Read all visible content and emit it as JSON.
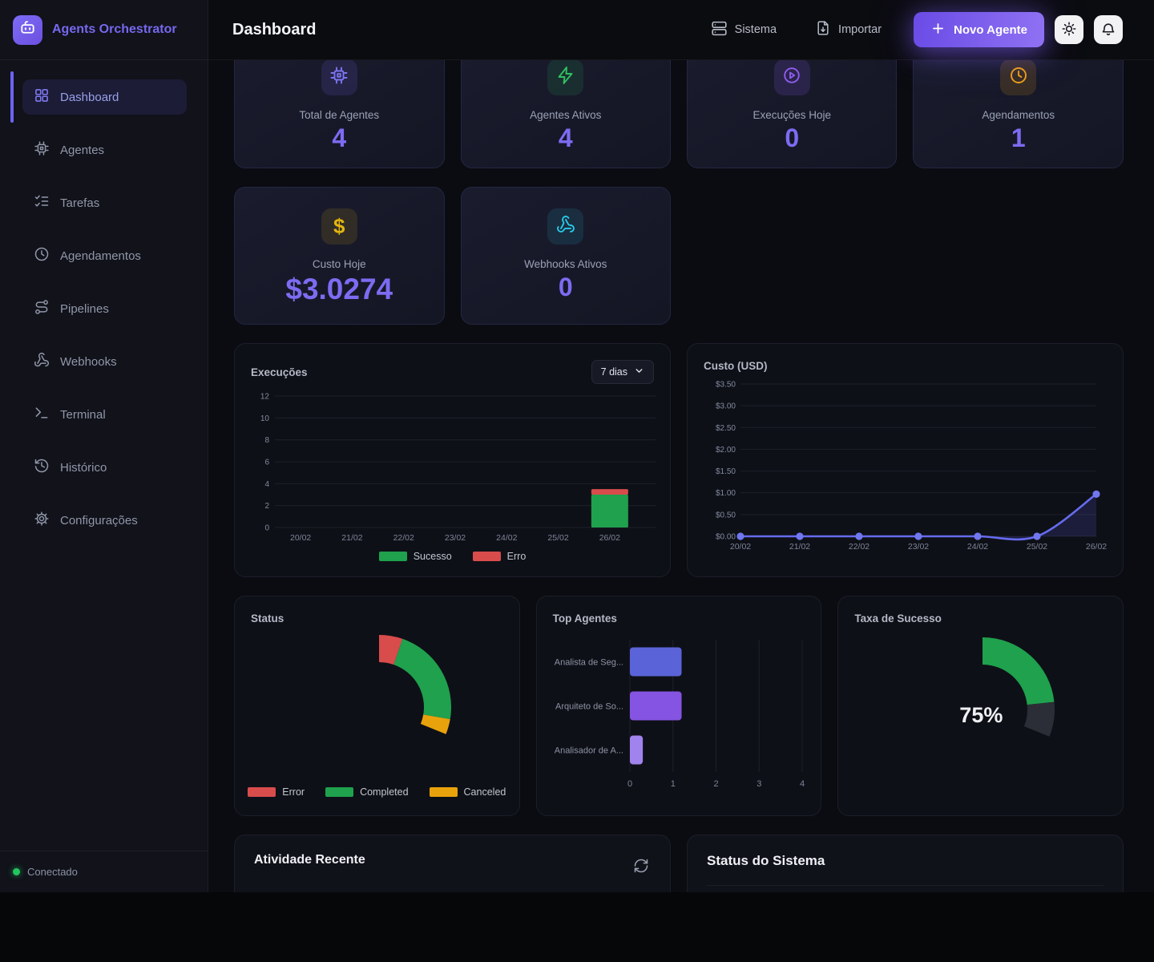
{
  "app": {
    "brand": "Agents Orchestrator",
    "connection_status": "Conectado"
  },
  "sidebar": {
    "items": [
      {
        "label": "Dashboard",
        "active": true
      },
      {
        "label": "Agentes"
      },
      {
        "label": "Tarefas"
      },
      {
        "label": "Agendamentos"
      },
      {
        "label": "Pipelines"
      },
      {
        "label": "Webhooks"
      },
      {
        "label": "Terminal"
      },
      {
        "label": "Histórico"
      },
      {
        "label": "Configurações"
      }
    ]
  },
  "header": {
    "title": "Dashboard",
    "sistema_label": "Sistema",
    "importar_label": "Importar",
    "novo_agente_label": "Novo Agente"
  },
  "stats": [
    {
      "label": "Total de Agentes",
      "value": "4",
      "icon": "cpu-icon",
      "accent": "#7d75f2",
      "tile_bg": "rgba(124,108,245,0.14)"
    },
    {
      "label": "Agentes Ativos",
      "value": "4",
      "icon": "zap-icon",
      "accent": "#2fc060",
      "tile_bg": "rgba(47,192,96,0.13)"
    },
    {
      "label": "Execuções Hoje",
      "value": "0",
      "icon": "play-circle-icon",
      "accent": "#8e5cf0",
      "tile_bg": "rgba(142,92,240,0.16)"
    },
    {
      "label": "Agendamentos",
      "value": "1",
      "icon": "clock-icon",
      "accent": "#f0a114",
      "tile_bg": "rgba(240,161,20,0.15)"
    },
    {
      "label": "Custo Hoje",
      "value": "$3.0274",
      "icon": "dollar-icon",
      "accent": "#e3b50f",
      "tile_bg": "rgba(227,181,15,0.13)"
    },
    {
      "label": "Webhooks Ativos",
      "value": "0",
      "icon": "webhook-icon",
      "accent": "#28c8e8",
      "tile_bg": "rgba(40,200,232,0.12)"
    }
  ],
  "chart_data": [
    {
      "id": "execucoes",
      "type": "bar",
      "stacked": true,
      "title": "Execuções",
      "range_selector": "7 dias",
      "categories": [
        "20/02",
        "21/02",
        "22/02",
        "23/02",
        "24/02",
        "25/02",
        "26/02"
      ],
      "series": [
        {
          "name": "Sucesso",
          "color": "#1fa14d",
          "values": [
            0,
            0,
            0,
            0,
            0,
            0,
            3
          ]
        },
        {
          "name": "Erro",
          "color": "#d84c4c",
          "values": [
            0,
            0,
            0,
            0,
            0,
            0,
            0.5
          ]
        }
      ],
      "ylim": [
        0,
        12
      ],
      "yticks": [
        0,
        2,
        4,
        6,
        8,
        10,
        12
      ],
      "grid": true,
      "legend_position": "bottom"
    },
    {
      "id": "custo",
      "type": "line",
      "area": true,
      "title": "Custo (USD)",
      "categories": [
        "20/02",
        "21/02",
        "22/02",
        "23/02",
        "24/02",
        "25/02",
        "26/02"
      ],
      "series": [
        {
          "name": "Custo",
          "color": "#666bee",
          "point_color": "#7177f0",
          "area_color": "rgba(99,102,241,0.16)",
          "values": [
            0,
            0,
            0,
            0,
            0,
            0,
            0.97
          ]
        }
      ],
      "ylim": [
        0,
        3.5
      ],
      "yticks": [
        0,
        0.5,
        1,
        1.5,
        2,
        2.5,
        3,
        3.5
      ],
      "ytick_labels": [
        "$0.00",
        "$0.50",
        "$1.00",
        "$1.50",
        "$2.00",
        "$2.50",
        "$3.00",
        "$3.50"
      ],
      "grid": true
    },
    {
      "id": "status",
      "type": "doughnut",
      "title": "Status",
      "arc_span_deg": [
        -90,
        22
      ],
      "segments": [
        {
          "label": "Error",
          "color": "#d84c4c",
          "pct": 17
        },
        {
          "label": "Completed",
          "color": "#1fa14d",
          "pct": 72
        },
        {
          "label": "Canceled",
          "color": "#e8a20c",
          "pct": 11
        }
      ],
      "legend_position": "bottom"
    },
    {
      "id": "top_agentes",
      "type": "bar_horizontal",
      "title": "Top Agentes",
      "categories": [
        "Analista de Seg...",
        "Arquiteto de So...",
        "Analisador de A..."
      ],
      "values": [
        1.2,
        1.2,
        0.3
      ],
      "colors": [
        "#5b63d8",
        "#8554e2",
        "#a183ee"
      ],
      "xlim": [
        0,
        4
      ],
      "xticks": [
        0,
        1,
        2,
        3,
        4
      ],
      "grid": true
    },
    {
      "id": "taxa",
      "type": "gauge",
      "title": "Taxa de Sucesso",
      "value_pct": 75,
      "label": "75%",
      "color": "#1fa14d",
      "track_color": "#2b2e36",
      "arc_span_deg": [
        -90,
        22
      ]
    }
  ],
  "sections": {
    "atividade": {
      "title": "Atividade Recente"
    },
    "sistema_status": {
      "title": "Status do Sistema"
    }
  }
}
